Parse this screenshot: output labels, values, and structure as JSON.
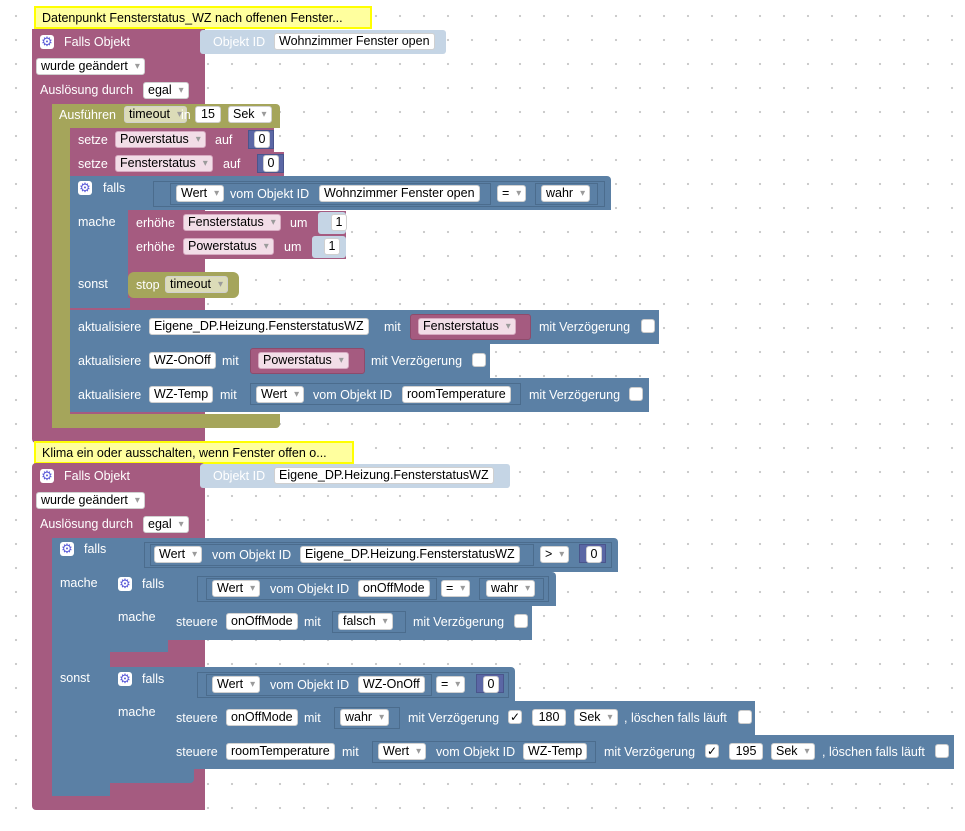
{
  "colors": {
    "trigger": "#a55b80",
    "control": "#5b80a5",
    "timeout": "#a5a55b",
    "comment": "#ffff9e",
    "math": "#5b67a5"
  },
  "icons": {
    "gear": "gear-icon",
    "dropdown": "chevron-down-icon"
  },
  "block1": {
    "comment": "Datenpunkt Fensterstatus_WZ nach offenen Fenster...",
    "trigger_label": "Falls Objekt",
    "objid_label": "Objekt ID",
    "objid_value": "Wohnzimmer Fenster open",
    "changed": "wurde geändert",
    "trigger_by": "Auslösung durch",
    "trigger_by_value": "egal",
    "exec": "Ausführen",
    "timeout_var": "timeout",
    "in": "in",
    "delay": "15",
    "unit": "Sek",
    "set1": {
      "label": "setze",
      "var": "Powerstatus",
      "to": "auf",
      "value": "0"
    },
    "set2": {
      "label": "setze",
      "var": "Fensterstatus",
      "to": "auf",
      "value": "0"
    },
    "if_label": "falls",
    "value_dd": "Wert",
    "from_obj": "vom Objekt ID",
    "obj": "Wohnzimmer Fenster open",
    "op": "=",
    "cmp": "wahr",
    "do_label": "mache",
    "inc1": {
      "label": "erhöhe",
      "var": "Fensterstatus",
      "by": "um",
      "value": "1"
    },
    "inc2": {
      "label": "erhöhe",
      "var": "Powerstatus",
      "by": "um",
      "value": "1"
    },
    "else_label": "sonst",
    "stop": "stop",
    "stop_var": "timeout",
    "upd1": {
      "label": "aktualisiere",
      "target": "Eigene_DP.Heizung.FensterstatusWZ",
      "with": "mit",
      "var": "Fensterstatus",
      "delay": "mit Verzögerung"
    },
    "upd2": {
      "label": "aktualisiere",
      "target": "WZ-OnOff",
      "with": "mit",
      "var": "Powerstatus",
      "delay": "mit Verzögerung"
    },
    "upd3": {
      "label": "aktualisiere",
      "target": "WZ-Temp",
      "with": "mit",
      "value_dd": "Wert",
      "from_obj": "vom Objekt ID",
      "obj": "roomTemperature",
      "delay": "mit Verzögerung"
    }
  },
  "block2": {
    "comment": "Klima ein oder ausschalten, wenn Fenster offen o...",
    "trigger_label": "Falls Objekt",
    "objid_label": "Objekt ID",
    "objid_value": "Eigene_DP.Heizung.FensterstatusWZ",
    "changed": "wurde geändert",
    "trigger_by": "Auslösung durch",
    "trigger_by_value": "egal",
    "if_label": "falls",
    "value_dd": "Wert",
    "from_obj": "vom Objekt ID",
    "obj": "Eigene_DP.Heizung.FensterstatusWZ",
    "op": ">",
    "cmp": "0",
    "do_label": "mache",
    "else_label": "sonst",
    "inner_if1": {
      "label": "falls",
      "value_dd": "Wert",
      "from_obj": "vom Objekt ID",
      "obj": "onOffMode",
      "op": "=",
      "cmp": "wahr",
      "do": "mache",
      "ctl": {
        "label": "steuere",
        "target": "onOffMode",
        "with": "mit",
        "value": "falsch",
        "delay": "mit Verzögerung"
      }
    },
    "inner_if2": {
      "label": "falls",
      "value_dd": "Wert",
      "from_obj": "vom Objekt ID",
      "obj": "WZ-OnOff",
      "op": "=",
      "cmp": "0",
      "do": "mache",
      "ctl1": {
        "label": "steuere",
        "target": "onOffMode",
        "with": "mit",
        "value": "wahr",
        "delay": "mit Verzögerung",
        "check": "✓",
        "delay_val": "180",
        "unit": "Sek",
        "clear": ", löschen falls läuft"
      },
      "ctl2": {
        "label": "steuere",
        "target": "roomTemperature",
        "with": "mit",
        "value_dd": "Wert",
        "from_obj": "vom Objekt ID",
        "obj": "WZ-Temp",
        "delay": "mit Verzögerung",
        "check": "✓",
        "delay_val": "195",
        "unit": "Sek",
        "clear": ", löschen falls läuft"
      }
    }
  }
}
